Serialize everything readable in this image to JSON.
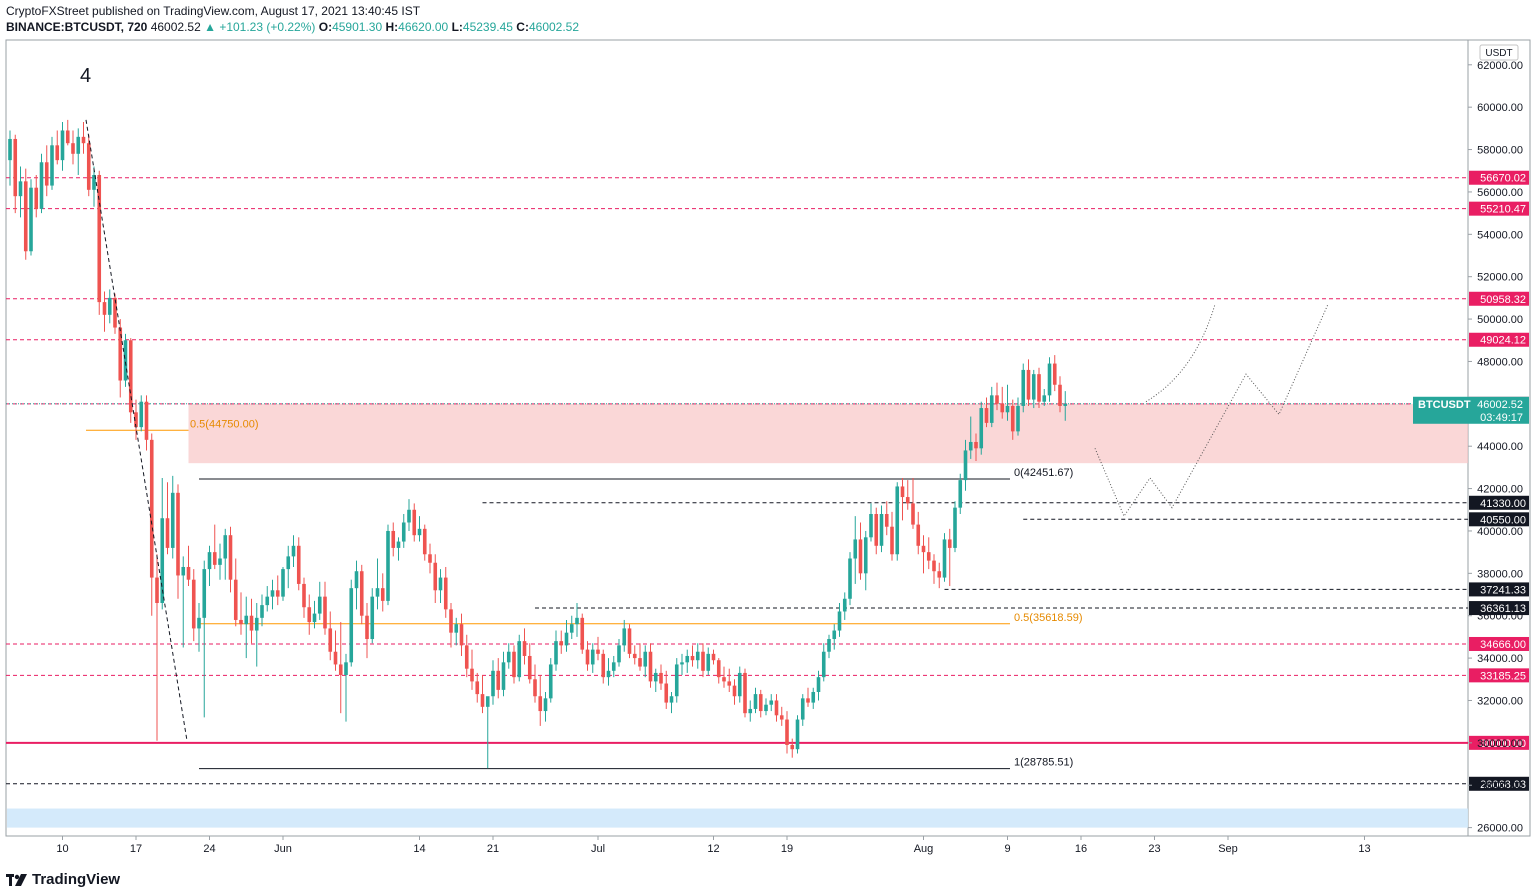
{
  "header": {
    "line1": "CryptoFXStreet published on TradingView.com, August 17, 2021 13:40:45 IST",
    "symbol": "BINANCE:BTCUSDT, 720",
    "last": "46002.52",
    "change": "▲ +101.23 (+0.22%)",
    "o_label": "O:",
    "o": "45901.30",
    "h_label": "H:",
    "h": "46620.00",
    "l_label": "L:",
    "l": "45239.45",
    "c_label": "C:",
    "c": "46002.52"
  },
  "footer": {
    "brand": "TradingView"
  },
  "colors": {
    "up": "#26a69a",
    "down": "#ef5350",
    "level_pink": "#e91e63",
    "fib": "#ff9800",
    "zone": "#f8c6c6",
    "zone_blue": "#cfe8fb"
  },
  "chart_data": {
    "type": "candlestick",
    "symbol": "BTCUSDT",
    "currency": "USDT",
    "ylim": [
      25200,
      63200
    ],
    "y_ticks": [
      26000,
      28000,
      30000,
      32000,
      34000,
      36000,
      38000,
      40000,
      42000,
      44000,
      46000,
      48000,
      50000,
      52000,
      54000,
      56000,
      58000,
      60000,
      62000
    ],
    "x_ticks": [
      {
        "i": 10,
        "label": "10"
      },
      {
        "i": 24,
        "label": "17"
      },
      {
        "i": 38,
        "label": "24"
      },
      {
        "i": 52,
        "label": "Jun"
      },
      {
        "i": 78,
        "label": "14"
      },
      {
        "i": 92,
        "label": "21"
      },
      {
        "i": 112,
        "label": "Jul"
      },
      {
        "i": 134,
        "label": "12"
      },
      {
        "i": 148,
        "label": "19"
      },
      {
        "i": 174,
        "label": "Aug"
      },
      {
        "i": 190,
        "label": "9"
      },
      {
        "i": 204,
        "label": "16"
      },
      {
        "i": 218,
        "label": "23"
      },
      {
        "i": 232,
        "label": "Sep"
      },
      {
        "i": 258,
        "label": "13"
      }
    ],
    "wave_label": "4",
    "price_tag": {
      "symbol": "BTCUSDT",
      "value": 46002.52,
      "countdown": "03:49:17"
    },
    "levels": [
      {
        "value": 56670.02,
        "label": "56670.02",
        "style": "pink"
      },
      {
        "value": 55210.47,
        "label": "55210.47",
        "style": "pink"
      },
      {
        "value": 50958.32,
        "label": "50958.32",
        "style": "pink"
      },
      {
        "value": 49024.12,
        "label": "49024.12",
        "style": "pink"
      },
      {
        "value": 46000.0,
        "label": "46000.00",
        "style": "pink"
      },
      {
        "value": 41330.0,
        "label": "41330.00",
        "style": "black"
      },
      {
        "value": 40550.0,
        "label": "40550.00",
        "style": "black"
      },
      {
        "value": 37241.33,
        "label": "37241.33",
        "style": "black"
      },
      {
        "value": 36361.13,
        "label": "36361.13",
        "style": "black"
      },
      {
        "value": 34666.0,
        "label": "34666.00",
        "style": "pink"
      },
      {
        "value": 33185.25,
        "label": "33185.25",
        "style": "pink"
      },
      {
        "value": 30000.0,
        "label": "30000.00",
        "style": "pinksolid"
      },
      {
        "value": 28068.03,
        "label": "28068.03",
        "style": "black"
      }
    ],
    "fib_labels": [
      {
        "text": "0.5(44750.00)",
        "value": 44750
      },
      {
        "text": "0(42451.67)",
        "value": 42451.67
      },
      {
        "text": "0.5(35618.59)",
        "value": 35618.59
      },
      {
        "text": "1(28785.51)",
        "value": 28785.51
      }
    ],
    "zones": [
      {
        "from": 43200,
        "to": 46000,
        "kind": "supply"
      },
      {
        "from": 26000,
        "to": 26900,
        "kind": "blue"
      }
    ],
    "candles": [
      [
        57500,
        58900,
        56300,
        58500
      ],
      [
        58500,
        58700,
        55000,
        55800
      ],
      [
        55800,
        57200,
        54800,
        56500
      ],
      [
        56500,
        57100,
        52800,
        53200
      ],
      [
        53200,
        56600,
        53000,
        56200
      ],
      [
        56200,
        56800,
        54800,
        55200
      ],
      [
        55200,
        57800,
        55000,
        57400
      ],
      [
        57400,
        58200,
        55800,
        56300
      ],
      [
        56300,
        58600,
        56100,
        58200
      ],
      [
        58200,
        58900,
        57300,
        57500
      ],
      [
        57500,
        59300,
        57000,
        58900
      ],
      [
        58900,
        59400,
        58200,
        58300
      ],
      [
        58300,
        58900,
        57300,
        57800
      ],
      [
        57800,
        59000,
        56800,
        58600
      ],
      [
        58600,
        59300,
        57800,
        58300
      ],
      [
        58300,
        58700,
        55800,
        56100
      ],
      [
        56100,
        57200,
        55300,
        56800
      ],
      [
        56800,
        57000,
        50200,
        50800
      ],
      [
        50800,
        51300,
        49400,
        50200
      ],
      [
        50200,
        51400,
        49800,
        51000
      ],
      [
        51000,
        51200,
        49300,
        49600
      ],
      [
        49600,
        50000,
        46300,
        47100
      ],
      [
        47100,
        49300,
        46800,
        49000
      ],
      [
        49000,
        49100,
        45100,
        45600
      ],
      [
        45600,
        46200,
        44300,
        44900
      ],
      [
        44900,
        46400,
        44700,
        46100
      ],
      [
        46100,
        46400,
        43800,
        44300
      ],
      [
        44300,
        44600,
        36000,
        37800
      ],
      [
        37800,
        38900,
        30100,
        36600
      ],
      [
        36600,
        42500,
        36300,
        40600
      ],
      [
        40600,
        42300,
        38900,
        39200
      ],
      [
        39200,
        42600,
        38700,
        41800
      ],
      [
        41800,
        42200,
        36800,
        37900
      ],
      [
        37900,
        38800,
        34500,
        38300
      ],
      [
        38300,
        39300,
        37400,
        37700
      ],
      [
        37700,
        38200,
        34800,
        35400
      ],
      [
        35400,
        36600,
        34300,
        35900
      ],
      [
        35900,
        38600,
        31200,
        38200
      ],
      [
        38200,
        39300,
        37400,
        39000
      ],
      [
        39000,
        40300,
        38200,
        38400
      ],
      [
        38400,
        39400,
        37700,
        38700
      ],
      [
        38700,
        40100,
        37700,
        39800
      ],
      [
        39800,
        40200,
        37100,
        37700
      ],
      [
        37700,
        38700,
        35500,
        35800
      ],
      [
        35800,
        37100,
        35100,
        35600
      ],
      [
        35600,
        36900,
        34000,
        36000
      ],
      [
        36000,
        36800,
        34700,
        35300
      ],
      [
        35300,
        36600,
        33600,
        35900
      ],
      [
        35900,
        37000,
        35500,
        36500
      ],
      [
        36500,
        37400,
        36200,
        36900
      ],
      [
        36900,
        37700,
        36300,
        37200
      ],
      [
        37200,
        37900,
        36500,
        36900
      ],
      [
        36900,
        38300,
        36700,
        38200
      ],
      [
        38200,
        39300,
        37300,
        38800
      ],
      [
        38800,
        39800,
        38300,
        39300
      ],
      [
        39300,
        39700,
        37200,
        37500
      ],
      [
        37500,
        37800,
        35900,
        36400
      ],
      [
        36400,
        37000,
        35100,
        35700
      ],
      [
        35700,
        36700,
        35400,
        36100
      ],
      [
        36100,
        37600,
        35800,
        36900
      ],
      [
        36900,
        37600,
        35100,
        35400
      ],
      [
        35400,
        36200,
        33900,
        34300
      ],
      [
        34300,
        35300,
        33400,
        33700
      ],
      [
        33700,
        35700,
        31400,
        33200
      ],
      [
        33200,
        34200,
        31000,
        33800
      ],
      [
        33800,
        37700,
        33600,
        37300
      ],
      [
        37300,
        38600,
        36300,
        38100
      ],
      [
        38100,
        38400,
        35600,
        36000
      ],
      [
        36000,
        36600,
        34000,
        34900
      ],
      [
        34900,
        37300,
        34700,
        36900
      ],
      [
        36900,
        38700,
        36300,
        37300
      ],
      [
        37300,
        38000,
        36200,
        36700
      ],
      [
        36700,
        40300,
        36500,
        40000
      ],
      [
        40000,
        40400,
        38800,
        39200
      ],
      [
        39200,
        39700,
        38600,
        39500
      ],
      [
        39500,
        40800,
        39200,
        40400
      ],
      [
        40400,
        41500,
        40000,
        41000
      ],
      [
        41000,
        41300,
        39500,
        39800
      ],
      [
        39800,
        40700,
        39500,
        40100
      ],
      [
        40100,
        40300,
        38600,
        38900
      ],
      [
        38900,
        39400,
        38000,
        38500
      ],
      [
        38500,
        38900,
        36600,
        37200
      ],
      [
        37200,
        38200,
        36600,
        37800
      ],
      [
        37800,
        38300,
        35900,
        36300
      ],
      [
        36300,
        36600,
        34500,
        35200
      ],
      [
        35200,
        35900,
        34600,
        35600
      ],
      [
        35600,
        36100,
        34100,
        34600
      ],
      [
        34600,
        35100,
        33100,
        33500
      ],
      [
        33500,
        34400,
        32500,
        32900
      ],
      [
        32900,
        33300,
        31900,
        32300
      ],
      [
        32300,
        33200,
        31400,
        31700
      ],
      [
        31700,
        32100,
        28800,
        32200
      ],
      [
        32200,
        33900,
        31800,
        33400
      ],
      [
        33400,
        34000,
        32100,
        32500
      ],
      [
        32500,
        34300,
        32200,
        33800
      ],
      [
        33800,
        34700,
        33500,
        34300
      ],
      [
        34300,
        34600,
        32800,
        33100
      ],
      [
        33100,
        35100,
        32900,
        34800
      ],
      [
        34800,
        35400,
        33700,
        34100
      ],
      [
        34100,
        34700,
        32800,
        33000
      ],
      [
        33000,
        33700,
        31900,
        32200
      ],
      [
        32200,
        33200,
        30800,
        31500
      ],
      [
        31500,
        32400,
        31000,
        32100
      ],
      [
        32100,
        34000,
        31900,
        33700
      ],
      [
        33700,
        35300,
        33400,
        34800
      ],
      [
        34800,
        35300,
        34200,
        34600
      ],
      [
        34600,
        35800,
        34300,
        35200
      ],
      [
        35200,
        36000,
        34900,
        35600
      ],
      [
        35600,
        36600,
        35000,
        35900
      ],
      [
        35900,
        36100,
        34200,
        34400
      ],
      [
        34400,
        34800,
        33400,
        33700
      ],
      [
        33700,
        34700,
        33300,
        34400
      ],
      [
        34400,
        35000,
        33900,
        34200
      ],
      [
        34200,
        34400,
        32800,
        33100
      ],
      [
        33100,
        34000,
        32700,
        33400
      ],
      [
        33400,
        34100,
        33100,
        33800
      ],
      [
        33800,
        34900,
        33600,
        34600
      ],
      [
        34600,
        35800,
        34300,
        35400
      ],
      [
        35400,
        35600,
        34000,
        34200
      ],
      [
        34200,
        34600,
        33700,
        34000
      ],
      [
        34000,
        34700,
        33400,
        33600
      ],
      [
        33600,
        34600,
        33100,
        34300
      ],
      [
        34300,
        34700,
        32600,
        32900
      ],
      [
        32900,
        33500,
        32400,
        33300
      ],
      [
        33300,
        33700,
        32500,
        32800
      ],
      [
        32800,
        33400,
        31600,
        31900
      ],
      [
        31900,
        32400,
        31400,
        32200
      ],
      [
        32200,
        34000,
        31900,
        33700
      ],
      [
        33700,
        34200,
        33200,
        33800
      ],
      [
        33800,
        34400,
        33300,
        34100
      ],
      [
        34100,
        34600,
        33600,
        33900
      ],
      [
        33900,
        34700,
        33500,
        34300
      ],
      [
        34300,
        34700,
        33100,
        33400
      ],
      [
        33400,
        34500,
        33200,
        34200
      ],
      [
        34200,
        34400,
        33700,
        33900
      ],
      [
        33900,
        34000,
        32800,
        33100
      ],
      [
        33100,
        33600,
        32600,
        32900
      ],
      [
        32900,
        33500,
        32400,
        32700
      ],
      [
        32700,
        33000,
        31800,
        32200
      ],
      [
        32200,
        33600,
        31900,
        33300
      ],
      [
        33300,
        33500,
        31200,
        31400
      ],
      [
        31400,
        32000,
        31000,
        31600
      ],
      [
        31600,
        32600,
        31400,
        32300
      ],
      [
        32300,
        32500,
        31200,
        31500
      ],
      [
        31500,
        32100,
        31300,
        31800
      ],
      [
        31800,
        32300,
        31500,
        32000
      ],
      [
        32000,
        32300,
        31000,
        31300
      ],
      [
        31300,
        31700,
        30800,
        31100
      ],
      [
        31100,
        31500,
        29500,
        29900
      ],
      [
        29900,
        30200,
        29300,
        29700
      ],
      [
        29700,
        31300,
        29500,
        31100
      ],
      [
        31100,
        32300,
        30800,
        32100
      ],
      [
        32100,
        32600,
        31700,
        31900
      ],
      [
        31900,
        32600,
        31600,
        32400
      ],
      [
        32400,
        33400,
        32000,
        33100
      ],
      [
        33100,
        34700,
        32900,
        34300
      ],
      [
        34300,
        35100,
        34000,
        34900
      ],
      [
        34900,
        35600,
        34400,
        35300
      ],
      [
        35300,
        36600,
        35000,
        36200
      ],
      [
        36200,
        37100,
        35800,
        36800
      ],
      [
        36800,
        39000,
        36500,
        38700
      ],
      [
        38700,
        40700,
        37500,
        39600
      ],
      [
        39600,
        40400,
        37700,
        38000
      ],
      [
        38000,
        40000,
        37200,
        39700
      ],
      [
        39700,
        41300,
        39500,
        40800
      ],
      [
        40800,
        41100,
        38900,
        39300
      ],
      [
        39300,
        41200,
        39000,
        40800
      ],
      [
        40800,
        41400,
        39800,
        40200
      ],
      [
        40200,
        40900,
        38600,
        38900
      ],
      [
        38900,
        42300,
        38600,
        42100
      ],
      [
        42100,
        42500,
        40500,
        41600
      ],
      [
        41600,
        42400,
        41000,
        41300
      ],
      [
        41300,
        42500,
        40100,
        40300
      ],
      [
        40300,
        40900,
        38900,
        39300
      ],
      [
        39300,
        39800,
        38000,
        39000
      ],
      [
        39000,
        39700,
        38200,
        38600
      ],
      [
        38600,
        38900,
        37500,
        38100
      ],
      [
        38100,
        38500,
        37300,
        37800
      ],
      [
        37800,
        39900,
        37600,
        39600
      ],
      [
        39600,
        40100,
        37400,
        39200
      ],
      [
        39200,
        41400,
        39000,
        41100
      ],
      [
        41100,
        42700,
        40800,
        42400
      ],
      [
        42400,
        44300,
        41900,
        43800
      ],
      [
        43800,
        45400,
        43400,
        44200
      ],
      [
        44200,
        44600,
        43300,
        43900
      ],
      [
        43900,
        46100,
        43600,
        45800
      ],
      [
        45800,
        46300,
        44900,
        45100
      ],
      [
        45100,
        46800,
        44900,
        46400
      ],
      [
        46400,
        47000,
        45700,
        46000
      ],
      [
        46000,
        46800,
        45300,
        45600
      ],
      [
        45600,
        46900,
        45200,
        45900
      ],
      [
        45900,
        46200,
        44300,
        44700
      ],
      [
        44700,
        46300,
        44500,
        45900
      ],
      [
        45900,
        47900,
        45600,
        47600
      ],
      [
        47600,
        48100,
        45900,
        46200
      ],
      [
        46200,
        47600,
        45800,
        47400
      ],
      [
        47400,
        47700,
        45800,
        46100
      ],
      [
        46100,
        46700,
        45900,
        46400
      ],
      [
        46400,
        48200,
        46100,
        47900
      ],
      [
        47900,
        48300,
        46600,
        46900
      ],
      [
        46900,
        47300,
        45600,
        45900
      ],
      [
        45900,
        46600,
        45200,
        46000
      ]
    ]
  }
}
